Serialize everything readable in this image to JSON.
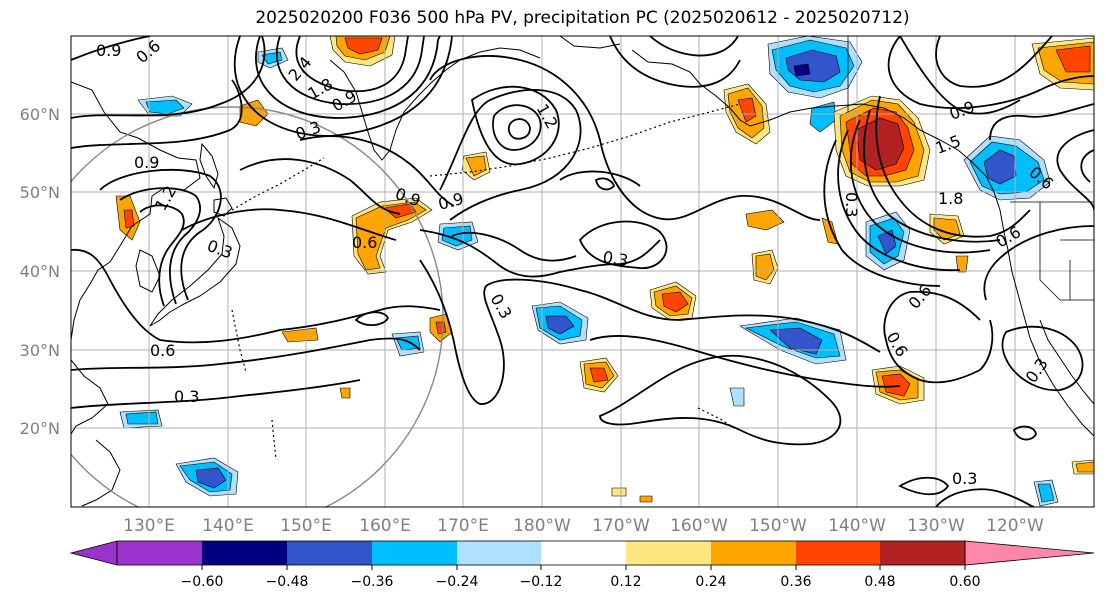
{
  "title": "2025020200 F036 500 hPa PV, precipitation PC (2025020612 - 2025020712)",
  "latitude_labels": [
    "60°N",
    "50°N",
    "40°N",
    "30°N",
    "20°N"
  ],
  "longitude_labels": [
    "130°E",
    "140°E",
    "150°E",
    "160°E",
    "170°E",
    "180°W",
    "170°W",
    "160°W",
    "150°W",
    "140°W",
    "130°W",
    "120°W"
  ],
  "colorbar": {
    "tick_labels": [
      "−0.60",
      "−0.48",
      "−0.36",
      "−0.24",
      "−0.12",
      "0.12",
      "0.24",
      "0.36",
      "0.48",
      "0.60"
    ],
    "colors": [
      "#9933cc",
      "#000080",
      "#3355cc",
      "#00bfff",
      "#b0e0ff",
      "#ffffff",
      "#ffe680",
      "#ffa500",
      "#ff4500",
      "#b22222",
      "#ff88aa"
    ]
  },
  "contour_labels": {
    "c1": "0.9",
    "c2": "0.6",
    "c3": "2.4",
    "c4": "1.8",
    "c5": "0.9",
    "c6": "0.3",
    "c7": "1.2",
    "c8": "0.9",
    "c9": "1.2",
    "c10": "0.3",
    "c11": "0.9",
    "c12": "0.9",
    "c13": "0.6",
    "c14": "0.3",
    "c15": "0.6",
    "c16": "0.3",
    "c17": "0.9",
    "c18": "1.5",
    "c19": "1.8",
    "c20": "0.3",
    "c21": "0.6",
    "c22": "0.6",
    "c23": "0.6",
    "c24": "0.3",
    "c25": "0.3"
  }
}
